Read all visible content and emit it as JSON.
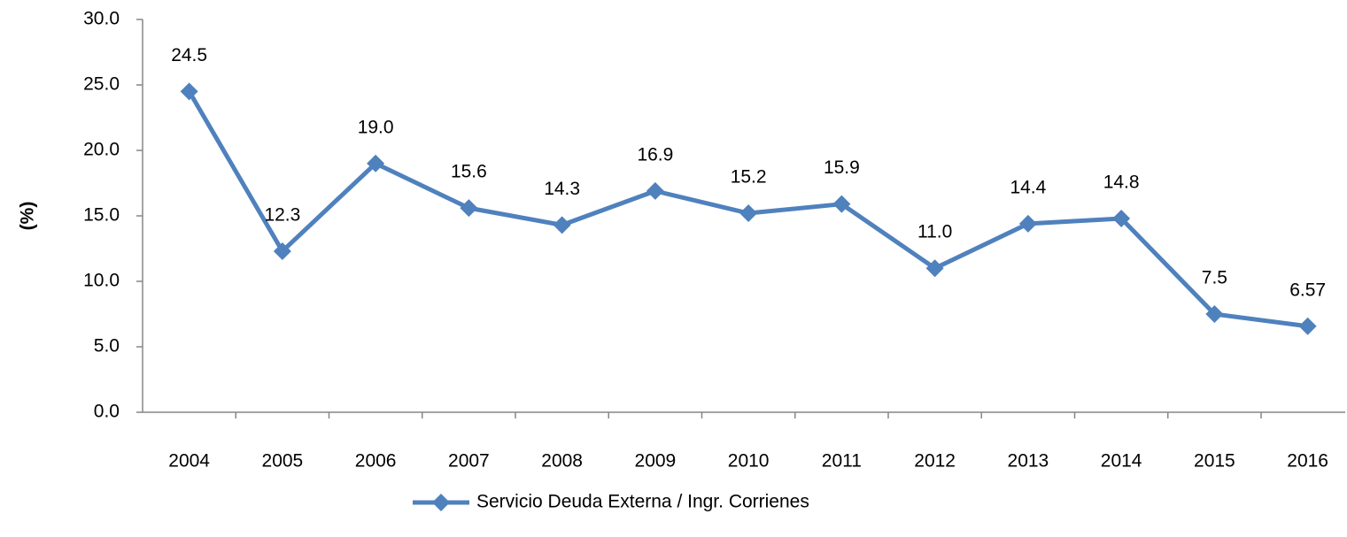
{
  "chart_data": {
    "type": "line",
    "categories": [
      "2004",
      "2005",
      "2006",
      "2007",
      "2008",
      "2009",
      "2010",
      "2011",
      "2012",
      "2013",
      "2014",
      "2015",
      "2016"
    ],
    "series": [
      {
        "name": "Servicio Deuda Externa / Ingr. Corrienes",
        "color": "#4f81bd",
        "values": [
          24.5,
          12.3,
          19.0,
          15.6,
          14.3,
          16.9,
          15.2,
          15.9,
          11.0,
          14.4,
          14.8,
          7.5,
          6.57
        ],
        "value_labels": [
          "24.5",
          "12.3",
          "19.0",
          "15.6",
          "14.3",
          "16.9",
          "15.2",
          "15.9",
          "11.0",
          "14.4",
          "14.8",
          "7.5",
          "6.57"
        ]
      }
    ],
    "ylabel": "(%)",
    "ylim": [
      0,
      30
    ],
    "yticks": [
      {
        "value": 0,
        "label": "0.0"
      },
      {
        "value": 5,
        "label": "5.0"
      },
      {
        "value": 10,
        "label": "10.0"
      },
      {
        "value": 15,
        "label": "15.0"
      },
      {
        "value": 20,
        "label": "20.0"
      },
      {
        "value": 25,
        "label": "25.0"
      },
      {
        "value": 30,
        "label": "30.0"
      }
    ],
    "legend": "bottom"
  }
}
